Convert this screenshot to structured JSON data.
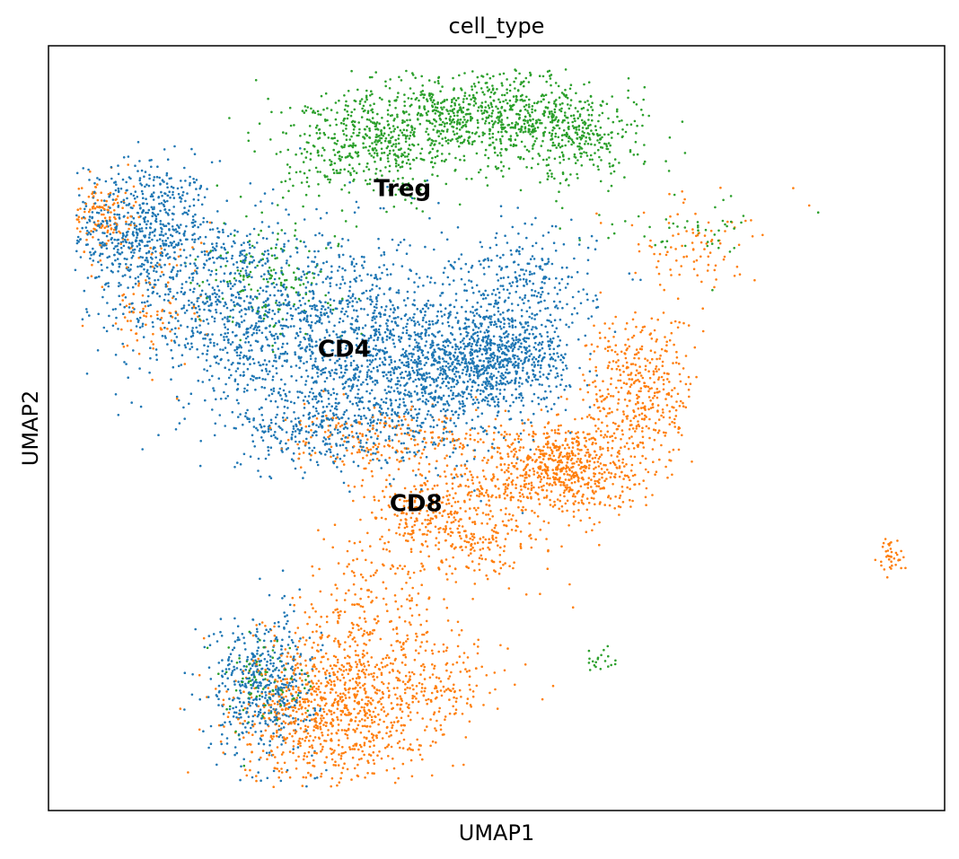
{
  "chart_data": {
    "type": "scatter",
    "title": "cell_type",
    "xlabel": "UMAP1",
    "ylabel": "UMAP2",
    "xlim": [
      0,
      100
    ],
    "ylim": [
      0,
      100
    ],
    "grid": false,
    "legend": "on data",
    "xticks": [],
    "yticks": [],
    "series": [
      {
        "name": "CD4",
        "label": "CD4",
        "color": "#1f77b4",
        "label_pos": [
          33,
          60.2
        ],
        "clusters": [
          {
            "cx": 10.5,
            "cy": 76,
            "sx": 4,
            "sy": 4.5,
            "n": 650
          },
          {
            "cx": 19,
            "cy": 66,
            "sx": 5.5,
            "sy": 6,
            "n": 600
          },
          {
            "cx": 33,
            "cy": 62,
            "sx": 7,
            "sy": 7,
            "n": 1100
          },
          {
            "cx": 43,
            "cy": 56,
            "sx": 6,
            "sy": 5,
            "n": 650
          },
          {
            "cx": 50,
            "cy": 59,
            "sx": 4,
            "sy": 3,
            "n": 650
          },
          {
            "cx": 53,
            "cy": 68,
            "sx": 4,
            "sy": 4,
            "n": 300
          },
          {
            "cx": 30,
            "cy": 50,
            "sx": 5,
            "sy": 2.5,
            "n": 250
          },
          {
            "cx": 24,
            "cy": 16.5,
            "sx": 3,
            "sy": 4.5,
            "n": 500
          }
        ]
      },
      {
        "name": "CD8",
        "label": "CD8",
        "color": "#ff7f0e",
        "label_pos": [
          41,
          40
        ],
        "clusters": [
          {
            "cx": 5.5,
            "cy": 78,
            "sx": 2,
            "sy": 2.5,
            "n": 140
          },
          {
            "cx": 12,
            "cy": 66,
            "sx": 3,
            "sy": 5,
            "n": 100
          },
          {
            "cx": 57,
            "cy": 45,
            "sx": 4.5,
            "sy": 3,
            "n": 700
          },
          {
            "cx": 66,
            "cy": 55,
            "sx": 3,
            "sy": 5,
            "n": 400
          },
          {
            "cx": 45,
            "cy": 38,
            "sx": 5,
            "sy": 4,
            "n": 500
          },
          {
            "cx": 38,
            "cy": 48.5,
            "sx": 6,
            "sy": 2,
            "n": 200
          },
          {
            "cx": 31,
            "cy": 13,
            "sx": 5,
            "sy": 5,
            "n": 800
          },
          {
            "cx": 41,
            "cy": 16,
            "sx": 5,
            "sy": 4,
            "n": 300
          },
          {
            "cx": 35,
            "cy": 25,
            "sx": 4,
            "sy": 5,
            "n": 200
          },
          {
            "cx": 72,
            "cy": 74,
            "sx": 4,
            "sy": 3,
            "n": 90
          },
          {
            "cx": 94,
            "cy": 33,
            "sx": 0.8,
            "sy": 1.2,
            "n": 40
          }
        ]
      },
      {
        "name": "Treg",
        "label": "Treg",
        "color": "#2ca02c",
        "label_pos": [
          39.5,
          81.2
        ],
        "clusters": [
          {
            "cx": 36,
            "cy": 87,
            "sx": 5,
            "sy": 3.5,
            "n": 500
          },
          {
            "cx": 49,
            "cy": 91,
            "sx": 6,
            "sy": 3,
            "n": 700
          },
          {
            "cx": 59,
            "cy": 88,
            "sx": 4,
            "sy": 3,
            "n": 300
          },
          {
            "cx": 25,
            "cy": 70,
            "sx": 4,
            "sy": 4,
            "n": 150
          },
          {
            "cx": 24,
            "cy": 17,
            "sx": 2,
            "sy": 3,
            "n": 80
          },
          {
            "cx": 72,
            "cy": 76,
            "sx": 5,
            "sy": 2,
            "n": 50
          },
          {
            "cx": 61.5,
            "cy": 19.5,
            "sx": 1,
            "sy": 0.7,
            "n": 20
          }
        ]
      }
    ]
  }
}
